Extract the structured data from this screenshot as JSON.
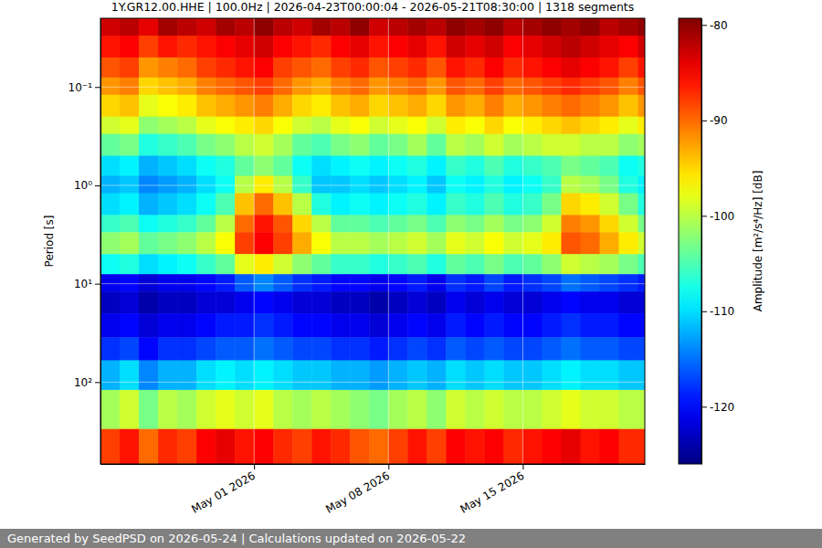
{
  "chart_data": {
    "type": "heatmap",
    "title": "1Y.GR12.00.HHE | 100.0Hz | 2026-04-23T00:00:04 - 2026-05-21T08:30:00 | 1318 segments",
    "ylabel": "Period [s]",
    "footer": "Generated by SeedPSD on 2026-05-24 | Calculations updated on 2026-05-22",
    "log": "y",
    "grid": true,
    "xlim": [
      "2026-04-23T00:00:04",
      "2026-05-21T08:30:00"
    ],
    "xticks": [
      {
        "value": "2026-05-01T00:00:00",
        "label": "May 01 2026"
      },
      {
        "value": "2026-05-08T00:00:00",
        "label": "May 08 2026"
      },
      {
        "value": "2026-05-15T00:00:00",
        "label": "May 15 2026"
      }
    ],
    "ylim": [
      0.02,
      680
    ],
    "yticks": [
      {
        "value": 0.1,
        "label": "10⁻¹"
      },
      {
        "value": 1,
        "label": "10⁰"
      },
      {
        "value": 10,
        "label": "10¹"
      },
      {
        "value": 100,
        "label": "10²"
      }
    ],
    "x_bins": [
      "2026-04-23T00:00:04",
      "2026-04-24T00:00:00",
      "2026-04-25T00:00:00",
      "2026-04-26T00:00:00",
      "2026-04-27T00:00:00",
      "2026-04-28T00:00:00",
      "2026-04-29T00:00:00",
      "2026-04-30T00:00:00",
      "2026-05-01T00:00:00",
      "2026-05-02T00:00:00",
      "2026-05-03T00:00:00",
      "2026-05-04T00:00:00",
      "2026-05-05T00:00:00",
      "2026-05-06T00:00:00",
      "2026-05-07T00:00:00",
      "2026-05-08T00:00:00",
      "2026-05-09T00:00:00",
      "2026-05-10T00:00:00",
      "2026-05-11T00:00:00",
      "2026-05-12T00:00:00",
      "2026-05-13T00:00:00",
      "2026-05-14T00:00:00",
      "2026-05-15T00:00:00",
      "2026-05-16T00:00:00",
      "2026-05-17T00:00:00",
      "2026-05-18T00:00:00",
      "2026-05-19T00:00:00",
      "2026-05-20T00:00:00",
      "2026-05-21T00:00:00",
      "2026-05-21T08:30:00"
    ],
    "y_bins": [
      0.02,
      0.03,
      0.05,
      0.08,
      0.12,
      0.2,
      0.3,
      0.5,
      0.8,
      1.2,
      2,
      3,
      5,
      8,
      12,
      20,
      35,
      60,
      120,
      300,
      680
    ],
    "z": [
      [
        -83,
        -82,
        -84,
        -81,
        -82,
        -83,
        -81,
        -82,
        -80,
        -82,
        -83,
        -81,
        -82,
        -80,
        -83,
        -82,
        -81,
        -82,
        -80,
        -81,
        -80,
        -82,
        -81,
        -80,
        -81,
        -80,
        -82,
        -81,
        -80
      ],
      [
        -86,
        -85,
        -88,
        -86,
        -87,
        -86,
        -85,
        -84,
        -83,
        -85,
        -86,
        -87,
        -85,
        -84,
        -86,
        -85,
        -84,
        -86,
        -83,
        -84,
        -83,
        -85,
        -84,
        -83,
        -82,
        -83,
        -84,
        -85,
        -83
      ],
      [
        -89,
        -88,
        -92,
        -91,
        -90,
        -88,
        -87,
        -86,
        -85,
        -88,
        -89,
        -90,
        -88,
        -87,
        -89,
        -88,
        -87,
        -89,
        -86,
        -87,
        -85,
        -87,
        -86,
        -85,
        -84,
        -85,
        -86,
        -88,
        -86
      ],
      [
        -92,
        -91,
        -95,
        -94,
        -93,
        -91,
        -90,
        -89,
        -88,
        -90,
        -92,
        -93,
        -91,
        -90,
        -92,
        -91,
        -90,
        -92,
        -89,
        -90,
        -88,
        -90,
        -89,
        -88,
        -87,
        -88,
        -89,
        -91,
        -89
      ],
      [
        -95,
        -94,
        -98,
        -97,
        -96,
        -94,
        -93,
        -92,
        -91,
        -93,
        -95,
        -96,
        -94,
        -93,
        -95,
        -94,
        -93,
        -95,
        -92,
        -93,
        -91,
        -93,
        -92,
        -91,
        -90,
        -91,
        -92,
        -94,
        -92
      ],
      [
        -99,
        -98,
        -102,
        -101,
        -100,
        -98,
        -97,
        -96,
        -95,
        -97,
        -99,
        -100,
        -98,
        -97,
        -99,
        -98,
        -97,
        -99,
        -96,
        -97,
        -95,
        -97,
        -96,
        -95,
        -94,
        -95,
        -96,
        -98,
        -96
      ],
      [
        -104,
        -103,
        -107,
        -106,
        -105,
        -103,
        -102,
        -100,
        -99,
        -101,
        -104,
        -105,
        -103,
        -102,
        -104,
        -103,
        -101,
        -104,
        -100,
        -101,
        -99,
        -101,
        -100,
        -99,
        -99,
        -100,
        -100,
        -102,
        -101
      ],
      [
        -110,
        -109,
        -112,
        -111,
        -110,
        -108,
        -107,
        -104,
        -102,
        -104,
        -108,
        -110,
        -109,
        -108,
        -109,
        -108,
        -107,
        -109,
        -106,
        -107,
        -105,
        -107,
        -106,
        -105,
        -103,
        -104,
        -105,
        -108,
        -107
      ],
      [
        -112,
        -111,
        -114,
        -113,
        -112,
        -110,
        -108,
        -100,
        -96,
        -100,
        -106,
        -111,
        -111,
        -110,
        -111,
        -110,
        -109,
        -111,
        -108,
        -109,
        -107,
        -109,
        -108,
        -106,
        -100,
        -101,
        -103,
        -107,
        -109
      ],
      [
        -110,
        -109,
        -112,
        -111,
        -110,
        -108,
        -105,
        -94,
        -90,
        -94,
        -100,
        -107,
        -109,
        -108,
        -109,
        -108,
        -107,
        -109,
        -106,
        -107,
        -105,
        -107,
        -106,
        -103,
        -95,
        -96,
        -99,
        -103,
        -107
      ],
      [
        -106,
        -105,
        -108,
        -107,
        -106,
        -104,
        -100,
        -90,
        -86,
        -89,
        -95,
        -100,
        -104,
        -104,
        -105,
        -104,
        -103,
        -105,
        -102,
        -103,
        -101,
        -103,
        -102,
        -99,
        -91,
        -92,
        -95,
        -99,
        -103
      ],
      [
        -102,
        -101,
        -104,
        -103,
        -102,
        -100,
        -97,
        -88,
        -85,
        -88,
        -93,
        -97,
        -100,
        -100,
        -101,
        -100,
        -99,
        -101,
        -98,
        -99,
        -97,
        -99,
        -98,
        -96,
        -89,
        -90,
        -93,
        -96,
        -99
      ],
      [
        -108,
        -107,
        -110,
        -109,
        -108,
        -106,
        -104,
        -98,
        -96,
        -99,
        -102,
        -104,
        -106,
        -106,
        -107,
        -106,
        -105,
        -107,
        -104,
        -105,
        -103,
        -105,
        -104,
        -102,
        -99,
        -100,
        -101,
        -103,
        -105
      ],
      [
        -121,
        -120,
        -122,
        -121,
        -121,
        -120,
        -119,
        -116,
        -114,
        -116,
        -118,
        -119,
        -120,
        -120,
        -121,
        -120,
        -119,
        -121,
        -118,
        -119,
        -117,
        -119,
        -118,
        -117,
        -115,
        -116,
        -117,
        -118,
        -119
      ],
      [
        -123,
        -122,
        -124,
        -123,
        -123,
        -122,
        -122,
        -121,
        -120,
        -121,
        -122,
        -122,
        -123,
        -123,
        -124,
        -123,
        -122,
        -123,
        -121,
        -122,
        -121,
        -122,
        -122,
        -121,
        -120,
        -121,
        -121,
        -122,
        -122
      ],
      [
        -121,
        -120,
        -122,
        -121,
        -121,
        -120,
        -119,
        -119,
        -118,
        -119,
        -120,
        -120,
        -121,
        -121,
        -122,
        -121,
        -120,
        -121,
        -119,
        -120,
        -119,
        -120,
        -120,
        -119,
        -118,
        -119,
        -119,
        -120,
        -120
      ],
      [
        -118,
        -117,
        -120,
        -118,
        -118,
        -117,
        -116,
        -116,
        -115,
        -116,
        -117,
        -117,
        -118,
        -118,
        -119,
        -118,
        -117,
        -118,
        -116,
        -117,
        -116,
        -117,
        -117,
        -116,
        -115,
        -116,
        -116,
        -117,
        -117
      ],
      [
        -112,
        -110,
        -114,
        -112,
        -112,
        -110,
        -109,
        -110,
        -109,
        -110,
        -111,
        -111,
        -112,
        -112,
        -113,
        -112,
        -111,
        -112,
        -110,
        -111,
        -110,
        -111,
        -111,
        -110,
        -109,
        -110,
        -110,
        -111,
        -111
      ],
      [
        -101,
        -99,
        -103,
        -100,
        -101,
        -99,
        -98,
        -99,
        -98,
        -100,
        -101,
        -100,
        -101,
        -102,
        -103,
        -101,
        -100,
        -102,
        -99,
        -100,
        -99,
        -100,
        -100,
        -99,
        -98,
        -99,
        -99,
        -100,
        -100
      ],
      [
        -88,
        -86,
        -90,
        -87,
        -88,
        -85,
        -84,
        -86,
        -85,
        -87,
        -88,
        -86,
        -87,
        -89,
        -90,
        -88,
        -86,
        -88,
        -85,
        -86,
        -85,
        -87,
        -86,
        -85,
        -84,
        -86,
        -85,
        -87,
        -87
      ]
    ],
    "colorbar_label": "Amplitude [m²/s⁴/Hz] [dB]",
    "colorbar_range": [
      -126,
      -79.3
    ],
    "colorbar_ticks": [
      -120,
      -110,
      -100,
      -90,
      -80
    ]
  }
}
